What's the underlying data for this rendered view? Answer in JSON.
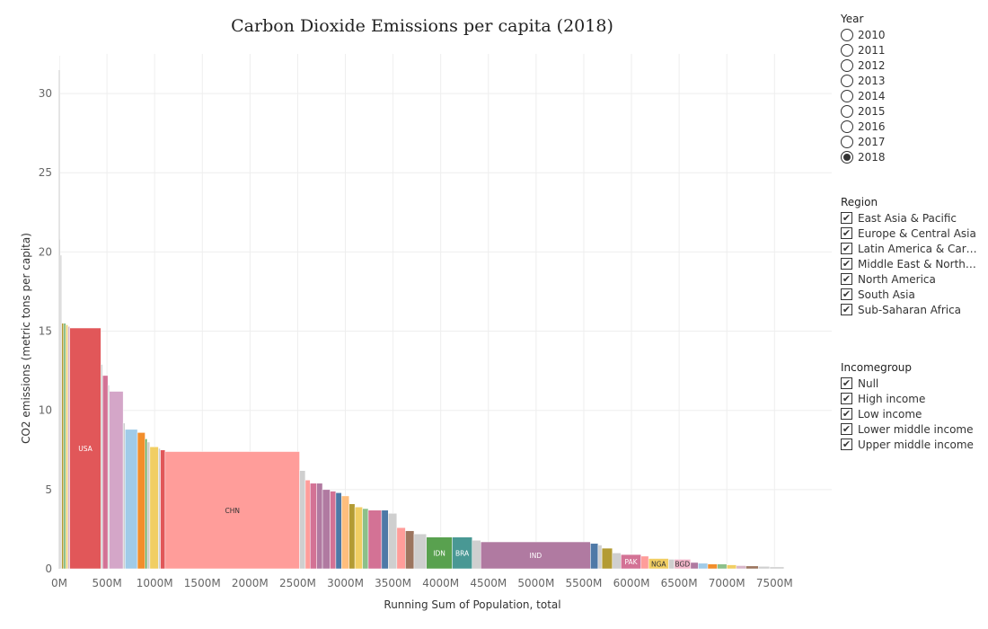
{
  "chart_data": {
    "type": "bar",
    "title": "Carbon Dioxide Emissions per capita (2018)",
    "xlabel": "Running Sum of Population, total",
    "ylabel": "CO2 emissions (metric tons per capita)",
    "xlim": [
      0,
      8100
    ],
    "ylim": [
      0,
      32.5
    ],
    "x_ticks": [
      0,
      500,
      1000,
      1500,
      2000,
      2500,
      3000,
      3500,
      4000,
      4500,
      5000,
      5500,
      6000,
      6500,
      7000,
      7500
    ],
    "x_tick_labels": [
      "0M",
      "500M",
      "1000M",
      "1500M",
      "2000M",
      "2500M",
      "3000M",
      "3500M",
      "4000M",
      "4500M",
      "5000M",
      "5500M",
      "6000M",
      "6500M",
      "7000M",
      "7500M"
    ],
    "y_ticks": [
      0,
      5,
      10,
      15,
      20,
      25,
      30
    ],
    "y_tick_labels": [
      "0",
      "5",
      "10",
      "15",
      "20",
      "25",
      "30"
    ],
    "grid": true,
    "bars": [
      {
        "x0": 0,
        "x1": 3,
        "value": 32.4,
        "color": "#cfcfcf"
      },
      {
        "x0": 3,
        "x1": 10,
        "value": 20.8,
        "color": "#cfcfcf"
      },
      {
        "x0": 10,
        "x1": 25,
        "value": 19.8,
        "color": "#cfcfcf"
      },
      {
        "x0": 25,
        "x1": 45,
        "value": 15.5,
        "color": "#b39b33"
      },
      {
        "x0": 45,
        "x1": 70,
        "value": 15.5,
        "color": "#8cc08a"
      },
      {
        "x0": 70,
        "x1": 90,
        "value": 15.4,
        "color": "#f1ce63"
      },
      {
        "x0": 90,
        "x1": 110,
        "value": 15.3,
        "color": "#d7b5c9"
      },
      {
        "x0": 110,
        "x1": 437,
        "value": 15.2,
        "color": "#e15759",
        "label": "USA"
      },
      {
        "x0": 437,
        "x1": 455,
        "value": 12.9,
        "color": "#cfcfcf"
      },
      {
        "x0": 455,
        "x1": 510,
        "value": 12.2,
        "color": "#d37295"
      },
      {
        "x0": 510,
        "x1": 525,
        "value": 11.6,
        "color": "#cfcfcf"
      },
      {
        "x0": 525,
        "x1": 670,
        "value": 11.2,
        "color": "#d4a6c8"
      },
      {
        "x0": 670,
        "x1": 690,
        "value": 9.2,
        "color": "#cfcfcf"
      },
      {
        "x0": 690,
        "x1": 820,
        "value": 8.8,
        "color": "#a0cbe8"
      },
      {
        "x0": 820,
        "x1": 900,
        "value": 8.6,
        "color": "#f28e2b"
      },
      {
        "x0": 900,
        "x1": 920,
        "value": 8.2,
        "color": "#59a14f"
      },
      {
        "x0": 920,
        "x1": 950,
        "value": 8.0,
        "color": "#cfcfcf"
      },
      {
        "x0": 950,
        "x1": 1040,
        "value": 7.7,
        "color": "#f1ce63"
      },
      {
        "x0": 1040,
        "x1": 1060,
        "value": 7.6,
        "color": "#cfcfcf"
      },
      {
        "x0": 1060,
        "x1": 1110,
        "value": 7.5,
        "color": "#e15759"
      },
      {
        "x0": 1110,
        "x1": 2520,
        "value": 7.4,
        "color": "#ff9d9a",
        "label": "CHN"
      },
      {
        "x0": 2520,
        "x1": 2580,
        "value": 6.2,
        "color": "#cfcfcf"
      },
      {
        "x0": 2580,
        "x1": 2630,
        "value": 5.6,
        "color": "#ff9d9a"
      },
      {
        "x0": 2630,
        "x1": 2700,
        "value": 5.4,
        "color": "#d37295"
      },
      {
        "x0": 2700,
        "x1": 2760,
        "value": 5.4,
        "color": "#b07aa1"
      },
      {
        "x0": 2760,
        "x1": 2840,
        "value": 5.0,
        "color": "#b07aa1"
      },
      {
        "x0": 2840,
        "x1": 2900,
        "value": 4.9,
        "color": "#d37295"
      },
      {
        "x0": 2900,
        "x1": 2960,
        "value": 4.8,
        "color": "#4e79a7"
      },
      {
        "x0": 2960,
        "x1": 3040,
        "value": 4.6,
        "color": "#ffbe7d"
      },
      {
        "x0": 3040,
        "x1": 3100,
        "value": 4.1,
        "color": "#b39b33"
      },
      {
        "x0": 3100,
        "x1": 3180,
        "value": 3.9,
        "color": "#f1ce63"
      },
      {
        "x0": 3180,
        "x1": 3240,
        "value": 3.8,
        "color": "#8cc08a"
      },
      {
        "x0": 3240,
        "x1": 3380,
        "value": 3.7,
        "color": "#d37295"
      },
      {
        "x0": 3380,
        "x1": 3450,
        "value": 3.7,
        "color": "#4e79a7"
      },
      {
        "x0": 3450,
        "x1": 3540,
        "value": 3.5,
        "color": "#cfcfcf"
      },
      {
        "x0": 3540,
        "x1": 3630,
        "value": 2.6,
        "color": "#ff9d9a"
      },
      {
        "x0": 3630,
        "x1": 3720,
        "value": 2.4,
        "color": "#9c755f"
      },
      {
        "x0": 3720,
        "x1": 3850,
        "value": 2.2,
        "color": "#cfcfcf"
      },
      {
        "x0": 3850,
        "x1": 4120,
        "value": 2.0,
        "color": "#59a14f",
        "label": "IDN"
      },
      {
        "x0": 4120,
        "x1": 4330,
        "value": 2.0,
        "color": "#499894",
        "label": "BRA"
      },
      {
        "x0": 4330,
        "x1": 4420,
        "value": 1.8,
        "color": "#cfcfcf"
      },
      {
        "x0": 4420,
        "x1": 5570,
        "value": 1.7,
        "color": "#b07aa1",
        "label": "IND"
      },
      {
        "x0": 5570,
        "x1": 5650,
        "value": 1.6,
        "color": "#4e79a7"
      },
      {
        "x0": 5650,
        "x1": 5690,
        "value": 1.5,
        "color": "#cfcfcf"
      },
      {
        "x0": 5690,
        "x1": 5800,
        "value": 1.3,
        "color": "#b39b33"
      },
      {
        "x0": 5800,
        "x1": 5890,
        "value": 1.0,
        "color": "#cfcfcf"
      },
      {
        "x0": 5890,
        "x1": 6100,
        "value": 0.9,
        "color": "#d37295",
        "label": "PAK"
      },
      {
        "x0": 6100,
        "x1": 6180,
        "value": 0.8,
        "color": "#ff9d9a"
      },
      {
        "x0": 6180,
        "x1": 6390,
        "value": 0.65,
        "color": "#f1ce63",
        "label": "NGA"
      },
      {
        "x0": 6390,
        "x1": 6450,
        "value": 0.6,
        "color": "#cfcfcf"
      },
      {
        "x0": 6450,
        "x1": 6620,
        "value": 0.6,
        "color": "#f2b5c9",
        "label": "BGD"
      },
      {
        "x0": 6620,
        "x1": 6700,
        "value": 0.4,
        "color": "#b07aa1"
      },
      {
        "x0": 6700,
        "x1": 6800,
        "value": 0.35,
        "color": "#a0cbe8"
      },
      {
        "x0": 6800,
        "x1": 6900,
        "value": 0.3,
        "color": "#f28e2b"
      },
      {
        "x0": 6900,
        "x1": 7000,
        "value": 0.3,
        "color": "#8cc08a"
      },
      {
        "x0": 7000,
        "x1": 7100,
        "value": 0.25,
        "color": "#f1ce63"
      },
      {
        "x0": 7100,
        "x1": 7200,
        "value": 0.2,
        "color": "#d7b5c9"
      },
      {
        "x0": 7200,
        "x1": 7330,
        "value": 0.18,
        "color": "#9c755f"
      },
      {
        "x0": 7330,
        "x1": 7450,
        "value": 0.15,
        "color": "#cfcfcf"
      },
      {
        "x0": 7450,
        "x1": 7600,
        "value": 0.12,
        "color": "#cfcfcf"
      }
    ]
  },
  "filters": {
    "year": {
      "title": "Year",
      "options": [
        "2010",
        "2011",
        "2012",
        "2013",
        "2014",
        "2015",
        "2016",
        "2017",
        "2018"
      ],
      "selected": "2018"
    },
    "region": {
      "title": "Region",
      "options": [
        {
          "label": "East Asia & Pacific",
          "checked": true
        },
        {
          "label": "Europe & Central Asia",
          "checked": true
        },
        {
          "label": "Latin America & Carib..",
          "checked": true
        },
        {
          "label": "Middle East & North A..",
          "checked": true
        },
        {
          "label": "North America",
          "checked": true
        },
        {
          "label": "South Asia",
          "checked": true
        },
        {
          "label": "Sub-Saharan Africa",
          "checked": true
        }
      ]
    },
    "incomegroup": {
      "title": "Incomegroup",
      "options": [
        {
          "label": "Null",
          "checked": true
        },
        {
          "label": "High income",
          "checked": true
        },
        {
          "label": "Low income",
          "checked": true
        },
        {
          "label": "Lower middle income",
          "checked": true
        },
        {
          "label": "Upper middle income",
          "checked": true
        }
      ]
    }
  }
}
